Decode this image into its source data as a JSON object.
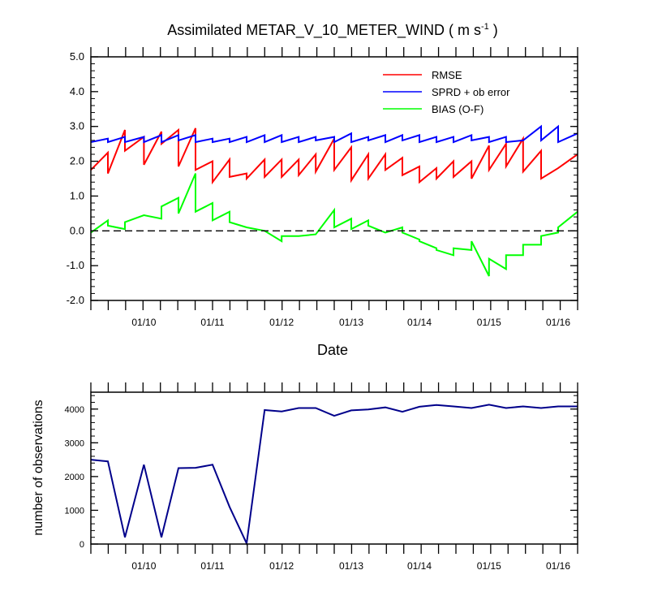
{
  "colors": {
    "rmse": "#ff0000",
    "sprd": "#0000ff",
    "bias": "#00ff00",
    "obs": "#00008b",
    "axis": "#000000"
  },
  "chart_data": [
    {
      "type": "line",
      "title": "Assimilated METAR_V_10_METER_WIND",
      "title_units": "( m s",
      "title_units_sup": "-1",
      "title_units_close": ")",
      "xlabel": "Date",
      "ylabel": "",
      "xlim": [
        0,
        1
      ],
      "ylim": [
        -2.0,
        5.0
      ],
      "yticks": [
        -2.0,
        -1.0,
        0.0,
        1.0,
        2.0,
        3.0,
        4.0,
        5.0
      ],
      "ytick_labels": [
        "-2.0",
        "-1.0",
        "0.0",
        "1.0",
        "2.0",
        "3.0",
        "4.0",
        "5.0"
      ],
      "xtick_labels": [
        {
          "label": "01/10",
          "x": 0.109
        },
        {
          "label": "01/11",
          "x": 0.25
        },
        {
          "label": "01/12",
          "x": 0.392
        },
        {
          "label": "01/13",
          "x": 0.535
        },
        {
          "label": "01/14",
          "x": 0.675
        },
        {
          "label": "01/15",
          "x": 0.818
        },
        {
          "label": "01/16",
          "x": 0.96
        }
      ],
      "legend": {
        "placement": "top-right",
        "entries": [
          "RMSE",
          "SPRD + ob error",
          "BIAS (O-F)"
        ]
      },
      "series": [
        {
          "name": "RMSE",
          "color_key": "rmse",
          "points": [
            [
              0.0,
              1.75
            ],
            [
              0.035,
              2.25
            ],
            [
              0.035,
              1.65
            ],
            [
              0.07,
              2.9
            ],
            [
              0.07,
              2.3
            ],
            [
              0.109,
              2.7
            ],
            [
              0.109,
              1.9
            ],
            [
              0.145,
              2.85
            ],
            [
              0.145,
              2.5
            ],
            [
              0.18,
              2.9
            ],
            [
              0.18,
              1.85
            ],
            [
              0.215,
              2.95
            ],
            [
              0.215,
              1.75
            ],
            [
              0.25,
              2.0
            ],
            [
              0.25,
              1.4
            ],
            [
              0.285,
              2.05
            ],
            [
              0.285,
              1.55
            ],
            [
              0.32,
              1.65
            ],
            [
              0.32,
              1.5
            ],
            [
              0.357,
              2.05
            ],
            [
              0.357,
              1.55
            ],
            [
              0.392,
              2.05
            ],
            [
              0.392,
              1.55
            ],
            [
              0.427,
              2.05
            ],
            [
              0.427,
              1.6
            ],
            [
              0.462,
              2.2
            ],
            [
              0.462,
              1.7
            ],
            [
              0.5,
              2.65
            ],
            [
              0.5,
              1.75
            ],
            [
              0.535,
              2.4
            ],
            [
              0.535,
              1.45
            ],
            [
              0.57,
              2.2
            ],
            [
              0.57,
              1.5
            ],
            [
              0.605,
              2.2
            ],
            [
              0.605,
              1.75
            ],
            [
              0.64,
              2.1
            ],
            [
              0.64,
              1.6
            ],
            [
              0.675,
              1.85
            ],
            [
              0.675,
              1.4
            ],
            [
              0.71,
              1.8
            ],
            [
              0.71,
              1.5
            ],
            [
              0.745,
              2.0
            ],
            [
              0.745,
              1.55
            ],
            [
              0.782,
              2.0
            ],
            [
              0.782,
              1.5
            ],
            [
              0.818,
              2.45
            ],
            [
              0.818,
              1.75
            ],
            [
              0.853,
              2.5
            ],
            [
              0.853,
              1.85
            ],
            [
              0.888,
              2.65
            ],
            [
              0.888,
              1.7
            ],
            [
              0.925,
              2.3
            ],
            [
              0.925,
              1.5
            ],
            [
              0.96,
              1.8
            ],
            [
              1.0,
              2.2
            ]
          ]
        },
        {
          "name": "SPRD + ob error",
          "color_key": "sprd",
          "points": [
            [
              0.0,
              2.55
            ],
            [
              0.035,
              2.65
            ],
            [
              0.035,
              2.55
            ],
            [
              0.07,
              2.7
            ],
            [
              0.07,
              2.55
            ],
            [
              0.109,
              2.7
            ],
            [
              0.109,
              2.55
            ],
            [
              0.145,
              2.75
            ],
            [
              0.145,
              2.55
            ],
            [
              0.18,
              2.75
            ],
            [
              0.18,
              2.6
            ],
            [
              0.215,
              2.75
            ],
            [
              0.215,
              2.55
            ],
            [
              0.25,
              2.65
            ],
            [
              0.25,
              2.55
            ],
            [
              0.285,
              2.65
            ],
            [
              0.285,
              2.55
            ],
            [
              0.32,
              2.7
            ],
            [
              0.32,
              2.55
            ],
            [
              0.357,
              2.75
            ],
            [
              0.357,
              2.55
            ],
            [
              0.392,
              2.75
            ],
            [
              0.392,
              2.55
            ],
            [
              0.427,
              2.7
            ],
            [
              0.427,
              2.55
            ],
            [
              0.462,
              2.7
            ],
            [
              0.462,
              2.6
            ],
            [
              0.5,
              2.7
            ],
            [
              0.5,
              2.55
            ],
            [
              0.535,
              2.8
            ],
            [
              0.535,
              2.55
            ],
            [
              0.57,
              2.7
            ],
            [
              0.57,
              2.6
            ],
            [
              0.605,
              2.75
            ],
            [
              0.605,
              2.55
            ],
            [
              0.64,
              2.75
            ],
            [
              0.64,
              2.6
            ],
            [
              0.675,
              2.75
            ],
            [
              0.675,
              2.55
            ],
            [
              0.71,
              2.7
            ],
            [
              0.71,
              2.55
            ],
            [
              0.745,
              2.7
            ],
            [
              0.745,
              2.55
            ],
            [
              0.782,
              2.75
            ],
            [
              0.782,
              2.6
            ],
            [
              0.818,
              2.7
            ],
            [
              0.818,
              2.55
            ],
            [
              0.853,
              2.7
            ],
            [
              0.853,
              2.55
            ],
            [
              0.888,
              2.6
            ],
            [
              0.925,
              3.0
            ],
            [
              0.925,
              2.6
            ],
            [
              0.96,
              3.0
            ],
            [
              0.96,
              2.55
            ],
            [
              1.0,
              2.8
            ]
          ]
        },
        {
          "name": "BIAS (O-F)",
          "color_key": "bias",
          "points": [
            [
              0.0,
              -0.05
            ],
            [
              0.035,
              0.3
            ],
            [
              0.035,
              0.15
            ],
            [
              0.07,
              0.05
            ],
            [
              0.07,
              0.25
            ],
            [
              0.109,
              0.45
            ],
            [
              0.145,
              0.35
            ],
            [
              0.145,
              0.7
            ],
            [
              0.18,
              0.95
            ],
            [
              0.18,
              0.5
            ],
            [
              0.215,
              1.65
            ],
            [
              0.215,
              0.55
            ],
            [
              0.25,
              0.8
            ],
            [
              0.25,
              0.3
            ],
            [
              0.285,
              0.55
            ],
            [
              0.285,
              0.25
            ],
            [
              0.32,
              0.1
            ],
            [
              0.357,
              0.0
            ],
            [
              0.392,
              -0.3
            ],
            [
              0.392,
              -0.15
            ],
            [
              0.427,
              -0.15
            ],
            [
              0.462,
              -0.1
            ],
            [
              0.5,
              0.6
            ],
            [
              0.5,
              0.1
            ],
            [
              0.535,
              0.35
            ],
            [
              0.535,
              0.05
            ],
            [
              0.57,
              0.3
            ],
            [
              0.57,
              0.15
            ],
            [
              0.605,
              -0.05
            ],
            [
              0.64,
              0.1
            ],
            [
              0.64,
              -0.05
            ],
            [
              0.675,
              -0.25
            ],
            [
              0.675,
              -0.3
            ],
            [
              0.71,
              -0.5
            ],
            [
              0.71,
              -0.55
            ],
            [
              0.745,
              -0.7
            ],
            [
              0.745,
              -0.5
            ],
            [
              0.782,
              -0.55
            ],
            [
              0.782,
              -0.3
            ],
            [
              0.818,
              -1.3
            ],
            [
              0.818,
              -0.8
            ],
            [
              0.853,
              -1.1
            ],
            [
              0.853,
              -0.7
            ],
            [
              0.888,
              -0.7
            ],
            [
              0.888,
              -0.4
            ],
            [
              0.925,
              -0.4
            ],
            [
              0.925,
              -0.15
            ],
            [
              0.96,
              -0.05
            ],
            [
              0.96,
              0.1
            ],
            [
              1.0,
              0.55
            ]
          ]
        }
      ],
      "reference_line": {
        "y": 0.0,
        "style": "dashed"
      }
    },
    {
      "type": "line",
      "title": "",
      "xlabel": "",
      "ylabel": "number of observations",
      "xlim": [
        0,
        1
      ],
      "ylim": [
        0,
        4500
      ],
      "yticks": [
        0,
        1000,
        2000,
        3000,
        4000
      ],
      "ytick_labels": [
        "0",
        "1000",
        "2000",
        "3000",
        "4000"
      ],
      "xtick_labels": [
        {
          "label": "01/10",
          "x": 0.109
        },
        {
          "label": "01/11",
          "x": 0.25
        },
        {
          "label": "01/12",
          "x": 0.392
        },
        {
          "label": "01/13",
          "x": 0.535
        },
        {
          "label": "01/14",
          "x": 0.675
        },
        {
          "label": "01/15",
          "x": 0.818
        },
        {
          "label": "01/16",
          "x": 0.96
        }
      ],
      "series": [
        {
          "name": "number of observations",
          "color_key": "obs",
          "points": [
            [
              0.0,
              2500
            ],
            [
              0.035,
              2450
            ],
            [
              0.07,
              200
            ],
            [
              0.109,
              2350
            ],
            [
              0.145,
              200
            ],
            [
              0.18,
              2250
            ],
            [
              0.215,
              2260
            ],
            [
              0.25,
              2350
            ],
            [
              0.285,
              1100
            ],
            [
              0.32,
              20
            ],
            [
              0.357,
              3970
            ],
            [
              0.392,
              3930
            ],
            [
              0.427,
              4030
            ],
            [
              0.462,
              4030
            ],
            [
              0.5,
              3800
            ],
            [
              0.535,
              3960
            ],
            [
              0.57,
              3990
            ],
            [
              0.605,
              4050
            ],
            [
              0.64,
              3920
            ],
            [
              0.675,
              4070
            ],
            [
              0.71,
              4120
            ],
            [
              0.745,
              4080
            ],
            [
              0.782,
              4030
            ],
            [
              0.818,
              4130
            ],
            [
              0.853,
              4030
            ],
            [
              0.888,
              4080
            ],
            [
              0.925,
              4030
            ],
            [
              0.96,
              4080
            ],
            [
              1.0,
              4080
            ]
          ]
        }
      ]
    }
  ]
}
